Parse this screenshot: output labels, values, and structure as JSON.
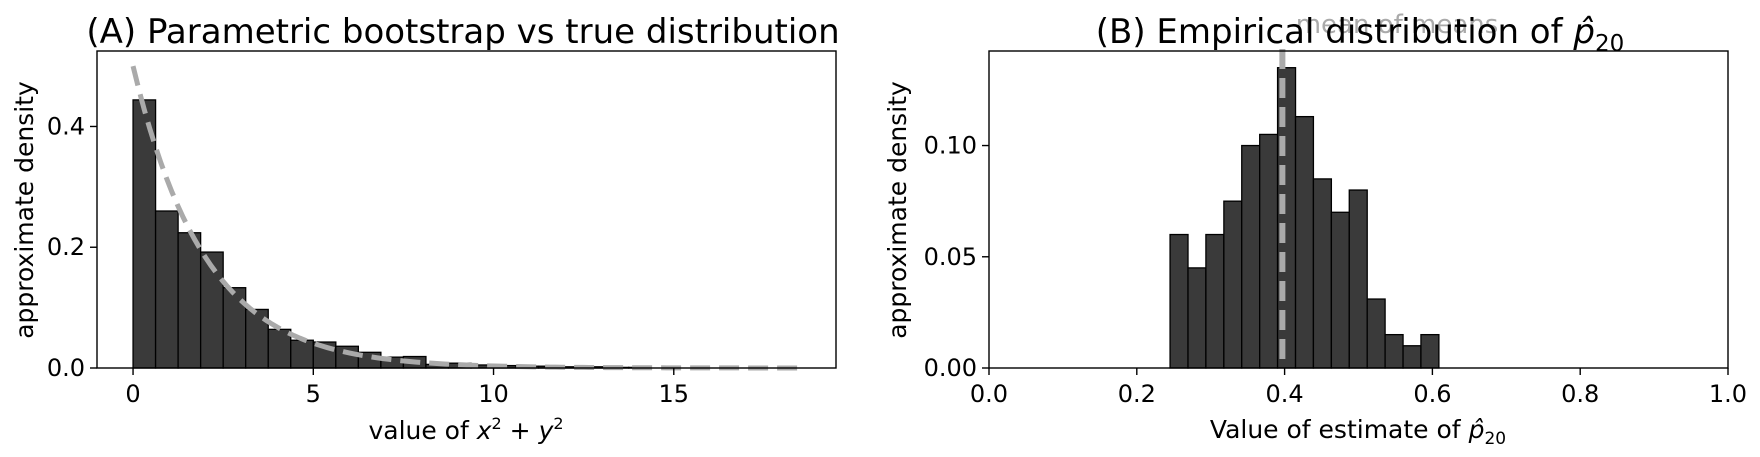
{
  "chart_data": [
    {
      "type": "histogram",
      "title": "(A) Parametric bootstrap vs true distribution",
      "xlabel": "value of x² + y²",
      "xlabel_parts": {
        "base": "value of ",
        "v1": "x",
        "s1": "2",
        "op": " + ",
        "v2": "y",
        "s2": "2"
      },
      "ylabel": "approximate density",
      "xlim": [
        -1.0,
        19.5
      ],
      "ylim": [
        0,
        0.525
      ],
      "xticks": [
        0,
        5,
        10,
        15
      ],
      "xtick_labels": [
        "0",
        "5",
        "10",
        "15"
      ],
      "yticks": [
        0.0,
        0.2,
        0.4
      ],
      "ytick_labels": [
        "0.0",
        "0.2",
        "0.4"
      ],
      "bin_edges": [
        0.0,
        0.625,
        1.25,
        1.875,
        2.5,
        3.125,
        3.75,
        4.375,
        5.0,
        5.625,
        6.25,
        6.875,
        7.5,
        8.125,
        8.75,
        9.375,
        10.0,
        10.625,
        11.25,
        11.875,
        12.5,
        13.125,
        13.75,
        14.375
      ],
      "densities": [
        0.444,
        0.26,
        0.224,
        0.192,
        0.133,
        0.097,
        0.064,
        0.046,
        0.043,
        0.036,
        0.026,
        0.018,
        0.019,
        0.006,
        0.008,
        0.005,
        0.004,
        0.003,
        0.003,
        0.002,
        0.002,
        0.001,
        0.001
      ],
      "bar_color": "#3a3a3a",
      "overlay": {
        "style": "dashed",
        "color": "#aaaaaa",
        "function": "0.5 * exp(-x/2)",
        "x_range": [
          0,
          18.5
        ]
      }
    },
    {
      "type": "histogram",
      "title": "(B) Empirical distribution of ",
      "title_symbol": {
        "base": "p̂",
        "sub": "20"
      },
      "xlabel": "Value of estimate of ",
      "xlabel_symbol": {
        "base": "p̂",
        "sub": "20"
      },
      "ylabel": "approximate density",
      "xlim": [
        0.0,
        1.0
      ],
      "ylim": [
        0,
        0.1425
      ],
      "xticks": [
        0.0,
        0.2,
        0.4,
        0.6,
        0.8,
        1.0
      ],
      "xtick_labels": [
        "0.0",
        "0.2",
        "0.4",
        "0.6",
        "0.8",
        "1.0"
      ],
      "yticks": [
        0.0,
        0.05,
        0.1
      ],
      "ytick_labels": [
        "0.00",
        "0.05",
        "0.10"
      ],
      "bin_edges": [
        0.245,
        0.2693,
        0.2935,
        0.3178,
        0.342,
        0.3663,
        0.3905,
        0.4148,
        0.439,
        0.4633,
        0.4875,
        0.5118,
        0.536,
        0.5603,
        0.5845,
        0.6088
      ],
      "densities": [
        0.06,
        0.045,
        0.06,
        0.075,
        0.1,
        0.105,
        0.135,
        0.113,
        0.085,
        0.07,
        0.08,
        0.031,
        0.015,
        0.01,
        0.015
      ],
      "bar_color": "#3a3a3a",
      "vline": {
        "x": 0.397,
        "label": "mean of means",
        "style": "dashed",
        "color": "#aaaaaa"
      }
    }
  ]
}
